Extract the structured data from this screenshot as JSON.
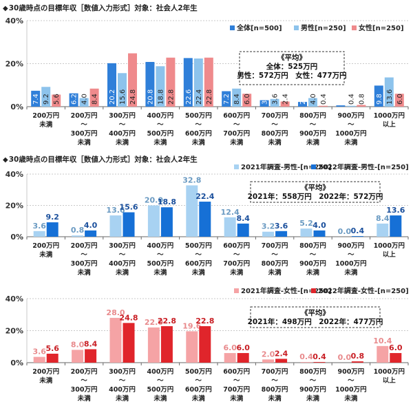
{
  "mark": "◆",
  "colors": {
    "all": "#2f7fd9",
    "male": "#8dc3ec",
    "female": "#ef8a8c",
    "male2021": "#a8d2f2",
    "male2022": "#1670d6",
    "female2021": "#f5a3a5",
    "female2022": "#e0252b",
    "grid": "#c8c8c8",
    "axis": "#666666"
  },
  "categories": [
    {
      "line1": "200万円",
      "line2": "未満",
      "line3": ""
    },
    {
      "line1": "200万円",
      "line2": "～",
      "line3": "300万円",
      "line4": "未満"
    },
    {
      "line1": "300万円",
      "line2": "～",
      "line3": "400万円",
      "line4": "未満"
    },
    {
      "line1": "400万円",
      "line2": "～",
      "line3": "500万円",
      "line4": "未満"
    },
    {
      "line1": "500万円",
      "line2": "～",
      "line3": "600万円",
      "line4": "未満"
    },
    {
      "line1": "600万円",
      "line2": "～",
      "line3": "700万円",
      "line4": "未満"
    },
    {
      "line1": "700万円",
      "line2": "～",
      "line3": "800万円",
      "line4": "未満"
    },
    {
      "line1": "800万円",
      "line2": "～",
      "line3": "900万円",
      "line4": "未満"
    },
    {
      "line1": "900万円",
      "line2": "～",
      "line3": "1000万円",
      "line4": "未満"
    },
    {
      "line1": "1000万円",
      "line2": "以上",
      "line3": ""
    }
  ],
  "chart_data": [
    {
      "type": "bar",
      "title": "30歳時点の目標年収［数値入力形式］対象：社会人2年生",
      "ylim": [
        0,
        40
      ],
      "yticks": [
        "0%",
        "20%",
        "40%"
      ],
      "series": [
        {
          "name": "全体[n=500]",
          "color_key": "all",
          "label_color": "#ffffff",
          "label_vertical": true,
          "values": [
            7.4,
            6.2,
            20.2,
            20.8,
            22.6,
            7.2,
            3.0,
            2.2,
            0.6,
            9.8
          ]
        },
        {
          "name": "男性[n=250]",
          "color_key": "male",
          "label_color": "#222222",
          "label_vertical": true,
          "values": [
            9.2,
            4.0,
            15.6,
            18.8,
            22.4,
            8.4,
            3.6,
            4.0,
            0.4,
            13.6
          ]
        },
        {
          "name": "女性[n=250]",
          "color_key": "female",
          "label_color": "#222222",
          "label_vertical": true,
          "values": [
            5.6,
            8.4,
            24.8,
            22.8,
            22.8,
            6.0,
            2.4,
            0.4,
            0.8,
            6.0
          ]
        }
      ],
      "average": {
        "heading": "《平均》",
        "line1": "全体：525万円",
        "line2": "男性：572万円　女性：477万円"
      }
    },
    {
      "type": "bar",
      "title": "30歳時点の目標年収［数値入力形式］対象：社会人2年生",
      "ylim": [
        0,
        40
      ],
      "yticks": [
        "0%",
        "20%",
        "40%"
      ],
      "series": [
        {
          "name": "2021年調査-男性-[n=250]",
          "color_key": "male2021",
          "label_color": "#6a9ac2",
          "values": [
            3.6,
            0.8,
            13.6,
            20.0,
            32.8,
            12.4,
            3.2,
            5.2,
            0.0,
            8.4
          ]
        },
        {
          "name": "2022年調査-男性-[n=250]",
          "color_key": "male2022",
          "label_color": "#1a4f9c",
          "values": [
            9.2,
            4.0,
            15.6,
            18.8,
            22.4,
            8.4,
            3.6,
            4.0,
            0.4,
            13.6
          ]
        }
      ],
      "average": {
        "heading": "《平均》",
        "line1": "2021年：558万円　2022年：572万円"
      }
    },
    {
      "type": "bar",
      "title": "",
      "ylim": [
        0,
        40
      ],
      "yticks": [
        "0%",
        "20%",
        "40%"
      ],
      "series": [
        {
          "name": "2021年調査-女性-[n=250]",
          "color_key": "female2021",
          "label_color": "#e88a8c",
          "values": [
            3.6,
            8.0,
            28.0,
            22.0,
            19.6,
            6.0,
            2.0,
            0.4,
            0.0,
            10.4
          ]
        },
        {
          "name": "2022年調査-女性-[n=250]",
          "color_key": "female2022",
          "label_color": "#c81e24",
          "values": [
            5.6,
            8.4,
            24.8,
            22.8,
            22.8,
            6.0,
            2.4,
            0.4,
            0.8,
            6.0
          ]
        }
      ],
      "average": {
        "heading": "《平均》",
        "line1": "2021年：498万円　2022年：477万円"
      }
    }
  ]
}
